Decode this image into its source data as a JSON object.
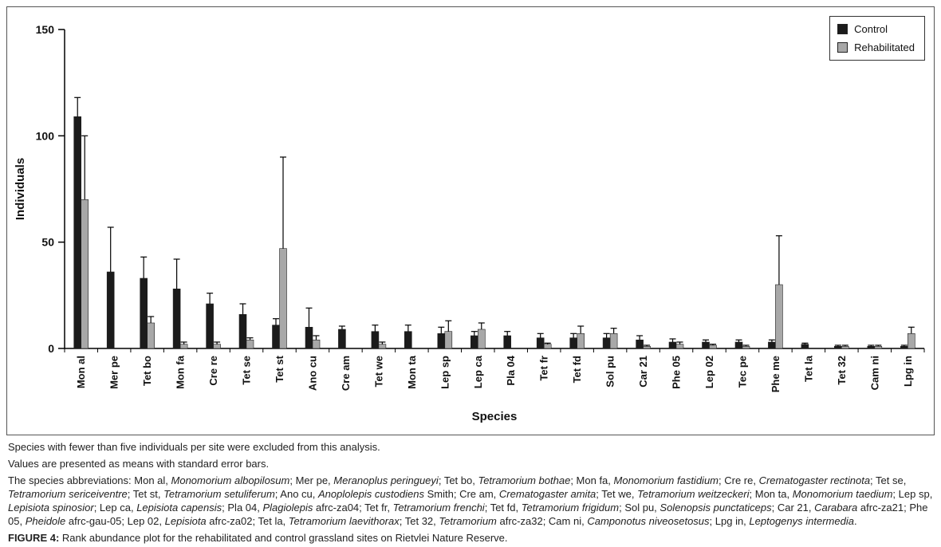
{
  "chart_data": {
    "type": "bar",
    "title": "",
    "xlabel": "Species",
    "ylabel": "Individuals",
    "ylim": [
      0,
      150
    ],
    "yticks": [
      0,
      50,
      100,
      150
    ],
    "grid": false,
    "legend_position": "top-right",
    "error_bars": "standard error, upper whisker",
    "categories": [
      "Mon al",
      "Mer pe",
      "Tet bo",
      "Mon fa",
      "Cre re",
      "Tet se",
      "Tet st",
      "Ano cu",
      "Cre am",
      "Tet we",
      "Mon ta",
      "Lep sp",
      "Lep ca",
      "Pla 04",
      "Tet fr",
      "Tet fd",
      "Sol pu",
      "Car 21",
      "Phe 05",
      "Lep 02",
      "Tec pe",
      "Phe me",
      "Tet la",
      "Tet 32",
      "Cam ni",
      "Lpg in"
    ],
    "series": [
      {
        "name": "Control",
        "color": "#1b1b1b",
        "values": [
          109,
          36,
          33,
          28,
          21,
          16,
          11,
          10,
          9,
          8,
          8,
          7,
          6,
          6,
          5,
          5,
          5,
          4,
          3,
          3,
          3,
          3,
          2,
          1,
          1,
          1
        ],
        "errors": [
          9,
          21,
          10,
          14,
          5,
          5,
          3,
          9,
          1.5,
          3,
          3,
          3,
          2,
          2,
          2,
          2,
          2,
          2,
          1.5,
          1,
          1,
          1,
          0.5,
          0.5,
          0.5,
          0.5
        ]
      },
      {
        "name": "Rehabilitated",
        "color": "#a8a8a8",
        "values": [
          70,
          0,
          12,
          2,
          2,
          4,
          47,
          4,
          0,
          2,
          0,
          8,
          9,
          0,
          2,
          7,
          7,
          1,
          2,
          1.5,
          1,
          30,
          0,
          1,
          1,
          7
        ],
        "errors": [
          30,
          0,
          3,
          1,
          1,
          1,
          43,
          2,
          0,
          1,
          0,
          5,
          3,
          0,
          0.5,
          3.5,
          2.5,
          0.5,
          1,
          0.5,
          0.5,
          23,
          0,
          0.5,
          0.5,
          3
        ]
      }
    ]
  },
  "notes": {
    "note1": "Species with fewer than five individuals per site were excluded from this analysis.",
    "note2": "Values are presented as means with standard error bars.",
    "abbrev_intro": "The species abbreviations: ",
    "abbreviations": [
      {
        "abbr": "Mon al",
        "name": "Monomorium albopilosum",
        "suffix": ""
      },
      {
        "abbr": "Mer pe",
        "name": "Meranoplus peringueyi",
        "suffix": ""
      },
      {
        "abbr": "Tet bo",
        "name": "Tetramorium bothae",
        "suffix": ""
      },
      {
        "abbr": "Mon fa",
        "name": "Monomorium fastidium",
        "suffix": ""
      },
      {
        "abbr": "Cre re",
        "name": "Crematogaster rectinota",
        "suffix": ""
      },
      {
        "abbr": "Tet se",
        "name": "Tetramorium sericeiventre",
        "suffix": ""
      },
      {
        "abbr": "Tet st",
        "name": "Tetramorium setuliferum",
        "suffix": ""
      },
      {
        "abbr": "Ano cu",
        "name": "Anoplolepis custodiens",
        "suffix": " Smith"
      },
      {
        "abbr": "Cre am",
        "name": "Crematogaster amita",
        "suffix": ""
      },
      {
        "abbr": "Tet we",
        "name": "Tetramorium weitzeckeri",
        "suffix": ""
      },
      {
        "abbr": "Mon ta",
        "name": "Monomorium taedium",
        "suffix": ""
      },
      {
        "abbr": "Lep sp",
        "name": "Lepisiota spinosior",
        "suffix": ""
      },
      {
        "abbr": "Lep ca",
        "name": "Lepisiota capensis",
        "suffix": ""
      },
      {
        "abbr": "Pla 04",
        "name": "Plagiolepis",
        "suffix": " afrc-za04"
      },
      {
        "abbr": "Tet fr",
        "name": "Tetramorium frenchi",
        "suffix": ""
      },
      {
        "abbr": "Tet fd",
        "name": "Tetramorium frigidum",
        "suffix": ""
      },
      {
        "abbr": "Sol pu",
        "name": "Solenopsis punctaticeps",
        "suffix": ""
      },
      {
        "abbr": "Car 21",
        "name": "Carabara",
        "suffix": " afrc-za21"
      },
      {
        "abbr": "Phe 05",
        "name": "Pheidole",
        "suffix": " afrc-gau-05"
      },
      {
        "abbr": "Lep 02",
        "name": "Lepisiota",
        "suffix": " afrc-za02"
      },
      {
        "abbr": "Tet la",
        "name": "Tetramorium laevithorax",
        "suffix": ""
      },
      {
        "abbr": "Tet 32",
        "name": "Tetramorium",
        "suffix": " afrc-za32"
      },
      {
        "abbr": "Cam ni",
        "name": "Camponotus niveosetosus",
        "suffix": ""
      },
      {
        "abbr": "Lpg in",
        "name": "Leptogenys intermedia",
        "suffix": ""
      }
    ]
  },
  "caption": {
    "label": "FIGURE 4:",
    "text": " Rank abundance plot for the rehabilitated and control grassland sites on Rietvlei Nature Reserve."
  }
}
